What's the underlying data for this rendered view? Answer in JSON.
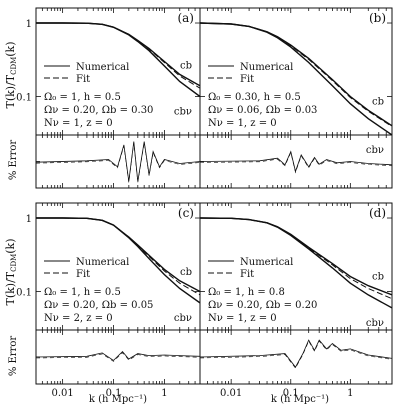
{
  "figure": {
    "ylabel_main_prefix": "T(k)/T",
    "ylabel_main_sub": "CDM",
    "ylabel_main_suffix": "(k)",
    "ylabel_err": "% Error",
    "xlabel": "k (h Mpc⁻¹)",
    "main_yticks": [
      "1",
      "0.1"
    ],
    "err_yticks": [],
    "xticks": [
      "0.01",
      "0.1",
      "1"
    ]
  },
  "chart_data": [
    {
      "type": "line",
      "panel": "(a)",
      "legend": [
        "Numerical",
        "Fit"
      ],
      "params": [
        "Ω₀ = 1, h = 0.5",
        "Ων = 0.20, Ωb = 0.30",
        "Nν = 1, z = 0"
      ],
      "curve_labels": [
        "cb",
        "cbν"
      ],
      "xscale": "log",
      "yscale": "log",
      "xlim": [
        0.003,
        5
      ],
      "ylim": [
        0.03,
        1.6
      ],
      "series": [
        {
          "name": "Numerical",
          "x": [
            0.003,
            0.01,
            0.03,
            0.06,
            0.1,
            0.2,
            0.3,
            0.5,
            1,
            2,
            5
          ],
          "y": [
            1,
            1,
            0.995,
            0.96,
            0.88,
            0.7,
            0.58,
            0.45,
            0.3,
            0.2,
            0.14
          ]
        },
        {
          "name": "Numerical",
          "x": [
            0.003,
            0.01,
            0.03,
            0.06,
            0.1,
            0.2,
            0.3,
            0.5,
            1,
            2,
            5
          ],
          "y": [
            1,
            1,
            0.995,
            0.96,
            0.875,
            0.69,
            0.56,
            0.42,
            0.26,
            0.16,
            0.1
          ]
        },
        {
          "name": "Fit",
          "x": [
            0.003,
            0.01,
            0.03,
            0.06,
            0.1,
            0.2,
            0.3,
            0.5,
            1,
            2,
            5
          ],
          "y": [
            1,
            1,
            0.995,
            0.96,
            0.88,
            0.7,
            0.57,
            0.44,
            0.29,
            0.19,
            0.13
          ]
        }
      ],
      "error": {
        "ylim": [
          -4,
          4
        ],
        "x": [
          0.003,
          0.03,
          0.08,
          0.12,
          0.16,
          0.2,
          0.25,
          0.3,
          0.4,
          0.5,
          0.6,
          0.8,
          1,
          2,
          5
        ],
        "y": [
          -0.1,
          0.1,
          0.3,
          -0.8,
          2.5,
          -3,
          3,
          -3,
          3,
          -2,
          1.5,
          -0.8,
          0.3,
          -0.3,
          0
        ]
      }
    },
    {
      "type": "line",
      "panel": "(b)",
      "legend": [
        "Numerical",
        "Fit"
      ],
      "params": [
        "Ω₀ = 0.30, h = 0.5",
        "Ων = 0.06, Ωb = 0.03",
        "Nν = 1, z = 0"
      ],
      "curve_labels": [
        "cb",
        "cbν"
      ],
      "xscale": "log",
      "yscale": "log",
      "xlim": [
        0.003,
        5
      ],
      "ylim": [
        0.03,
        1.6
      ],
      "series": [
        {
          "name": "Numerical",
          "x": [
            0.003,
            0.01,
            0.02,
            0.04,
            0.06,
            0.1,
            0.2,
            0.5,
            1,
            2,
            5
          ],
          "y": [
            1,
            0.97,
            0.9,
            0.76,
            0.65,
            0.5,
            0.33,
            0.17,
            0.1,
            0.065,
            0.04
          ]
        },
        {
          "name": "Numerical",
          "x": [
            0.003,
            0.01,
            0.02,
            0.04,
            0.06,
            0.1,
            0.2,
            0.5,
            1,
            2,
            5
          ],
          "y": [
            1,
            0.97,
            0.9,
            0.75,
            0.63,
            0.47,
            0.29,
            0.14,
            0.08,
            0.05,
            0.03
          ]
        },
        {
          "name": "Fit",
          "x": [
            0.003,
            0.01,
            0.02,
            0.04,
            0.06,
            0.1,
            0.2,
            0.5,
            1,
            2,
            5
          ],
          "y": [
            1,
            0.97,
            0.9,
            0.76,
            0.64,
            0.49,
            0.32,
            0.165,
            0.097,
            0.063,
            0.039
          ]
        }
      ],
      "error": {
        "ylim": [
          -4,
          4
        ],
        "x": [
          0.003,
          0.03,
          0.06,
          0.08,
          0.1,
          0.12,
          0.15,
          0.2,
          0.25,
          0.3,
          0.4,
          0.6,
          1,
          2,
          5
        ],
        "y": [
          0,
          0.1,
          0.5,
          -0.5,
          1.5,
          -1.5,
          1,
          -0.8,
          0.6,
          -0.4,
          0.3,
          -0.2,
          0,
          -0.3,
          -0.5
        ]
      }
    },
    {
      "type": "line",
      "panel": "(c)",
      "legend": [
        "Numerical",
        "Fit"
      ],
      "params": [
        "Ω₀ = 1, h = 0.5",
        "Ων = 0.20, Ωb = 0.05",
        "Nν = 2, z = 0"
      ],
      "curve_labels": [
        "cb",
        "cbν"
      ],
      "xscale": "log",
      "yscale": "log",
      "xlim": [
        0.003,
        5
      ],
      "ylim": [
        0.03,
        1.6
      ],
      "series": [
        {
          "name": "Numerical",
          "x": [
            0.003,
            0.01,
            0.03,
            0.06,
            0.1,
            0.2,
            0.3,
            0.5,
            1,
            2,
            5
          ],
          "y": [
            1,
            1,
            0.99,
            0.93,
            0.8,
            0.55,
            0.43,
            0.31,
            0.2,
            0.14,
            0.1
          ]
        },
        {
          "name": "Numerical",
          "x": [
            0.003,
            0.01,
            0.03,
            0.06,
            0.1,
            0.2,
            0.3,
            0.5,
            1,
            2,
            5
          ],
          "y": [
            1,
            1,
            0.99,
            0.93,
            0.8,
            0.54,
            0.41,
            0.28,
            0.17,
            0.11,
            0.07
          ]
        },
        {
          "name": "Fit",
          "x": [
            0.003,
            0.01,
            0.03,
            0.06,
            0.1,
            0.2,
            0.3,
            0.5,
            1,
            2,
            5
          ],
          "y": [
            1,
            1,
            0.99,
            0.93,
            0.8,
            0.55,
            0.42,
            0.3,
            0.19,
            0.13,
            0.09
          ]
        }
      ],
      "error": {
        "ylim": [
          -4,
          4
        ],
        "x": [
          0.003,
          0.03,
          0.06,
          0.1,
          0.15,
          0.2,
          0.3,
          0.5,
          1,
          2,
          5
        ],
        "y": [
          0,
          0.1,
          0.6,
          -0.5,
          0.8,
          -0.3,
          0.5,
          0.2,
          0.3,
          0.2,
          0.1
        ]
      }
    },
    {
      "type": "line",
      "panel": "(d)",
      "legend": [
        "Numerical",
        "Fit"
      ],
      "params": [
        "Ω₀ = 1, h = 0.8",
        "Ων = 0.20, Ωb = 0.20",
        "Nν = 1, z = 0"
      ],
      "curve_labels": [
        "cb",
        "cbν"
      ],
      "xscale": "log",
      "yscale": "log",
      "xlim": [
        0.003,
        5
      ],
      "ylim": [
        0.03,
        1.6
      ],
      "series": [
        {
          "name": "Numerical",
          "x": [
            0.003,
            0.01,
            0.02,
            0.04,
            0.06,
            0.1,
            0.2,
            0.5,
            1,
            2,
            5
          ],
          "y": [
            1,
            0.99,
            0.95,
            0.86,
            0.76,
            0.6,
            0.4,
            0.24,
            0.16,
            0.12,
            0.09
          ]
        },
        {
          "name": "Numerical",
          "x": [
            0.003,
            0.01,
            0.02,
            0.04,
            0.06,
            0.1,
            0.2,
            0.5,
            1,
            2,
            5
          ],
          "y": [
            1,
            0.99,
            0.95,
            0.86,
            0.75,
            0.58,
            0.38,
            0.21,
            0.13,
            0.09,
            0.06
          ]
        },
        {
          "name": "Fit",
          "x": [
            0.003,
            0.01,
            0.02,
            0.04,
            0.06,
            0.1,
            0.2,
            0.5,
            1,
            2,
            5
          ],
          "y": [
            1,
            0.99,
            0.95,
            0.86,
            0.76,
            0.59,
            0.39,
            0.23,
            0.15,
            0.11,
            0.08
          ]
        }
      ],
      "error": {
        "ylim": [
          -4,
          4
        ],
        "x": [
          0.003,
          0.03,
          0.08,
          0.12,
          0.16,
          0.2,
          0.25,
          0.3,
          0.4,
          0.5,
          0.7,
          1,
          2,
          5
        ],
        "y": [
          0,
          0.2,
          0.5,
          -1.5,
          0.5,
          2.5,
          1,
          2.5,
          1.2,
          2,
          1,
          1.2,
          0.3,
          -0.2
        ]
      }
    }
  ]
}
